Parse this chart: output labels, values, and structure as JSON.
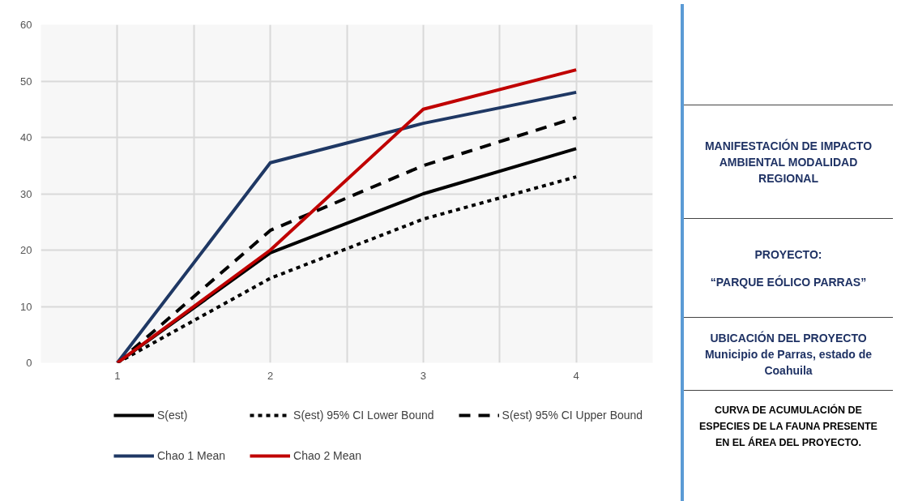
{
  "chart_data": {
    "type": "line",
    "categories": [
      "1",
      "2",
      "3",
      "4"
    ],
    "series": [
      {
        "name": "S(est)",
        "color": "#000000",
        "line_style": "solid",
        "values": [
          0,
          19.5,
          30,
          38
        ]
      },
      {
        "name": "S(est) 95% CI Lower Bound",
        "color": "#000000",
        "line_style": "dotted",
        "values": [
          0,
          15,
          25.5,
          33
        ]
      },
      {
        "name": "S(est) 95% CI Upper Bound",
        "color": "#000000",
        "line_style": "dashed",
        "values": [
          0,
          23.5,
          35,
          43.5
        ]
      },
      {
        "name": "Chao 1 Mean",
        "color": "#1f3864",
        "line_style": "solid",
        "values": [
          0,
          35.5,
          42.5,
          48
        ]
      },
      {
        "name": "Chao 2 Mean",
        "color": "#c00000",
        "line_style": "solid",
        "values": [
          0,
          20,
          45,
          52
        ]
      }
    ],
    "ylim": [
      0,
      60
    ],
    "yticks": [
      0,
      10,
      20,
      30,
      40,
      50,
      60
    ],
    "grid": true,
    "legend": "bottom",
    "annotations": [
      "MANIFESTACIÓN DE IMPACTO AMBIENTAL MODALIDAD REGIONAL",
      "PROYECTO:",
      "“PARQUE EÓLICO PARRAS”",
      "UBICACIÓN DEL PROYECTO",
      "Municipio de Parras, estado de Coahuila",
      "CURVA DE ACUMULACIÓN DE ESPECIES DE LA FAUNA PRESENTE EN EL ÁREA DEL PROYECTO."
    ]
  }
}
